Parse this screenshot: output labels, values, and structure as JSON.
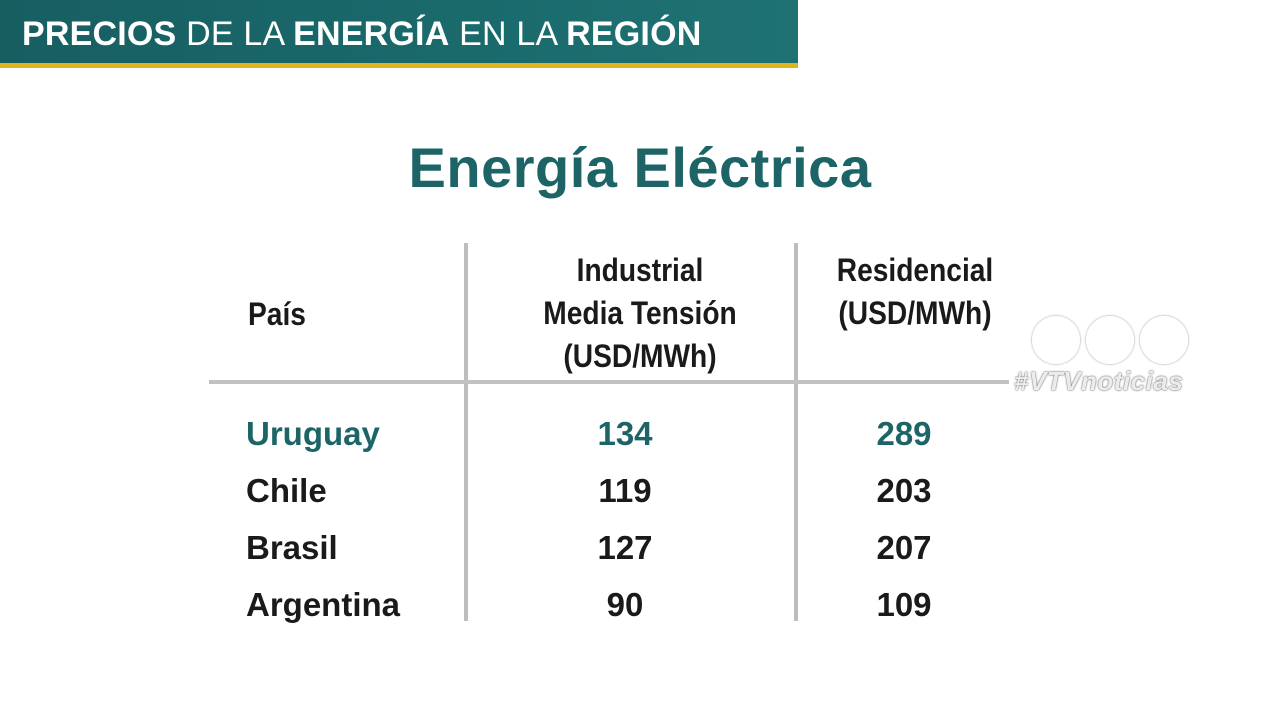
{
  "banner": {
    "words": [
      {
        "text": "PRECIOS",
        "bold": true
      },
      {
        "text": "DE LA",
        "bold": false
      },
      {
        "text": "ENERGÍA",
        "bold": true
      },
      {
        "text": "EN LA",
        "bold": false
      },
      {
        "text": "REGIÓN",
        "bold": true
      }
    ],
    "background": "#1a6668",
    "accent_line": "#e1b21c"
  },
  "title": "Energía Eléctrica",
  "title_color": "#1c6466",
  "table": {
    "headers": {
      "country": "País",
      "industrial": [
        "Industrial",
        "Media Tensión",
        "(USD/MWh)"
      ],
      "residential": [
        "Residencial",
        "(USD/MWh)"
      ]
    },
    "rows": [
      {
        "country": "Uruguay",
        "industrial": "134",
        "residential": "289",
        "highlight": true
      },
      {
        "country": "Chile",
        "industrial": "119",
        "residential": "203",
        "highlight": false
      },
      {
        "country": "Brasil",
        "industrial": "127",
        "residential": "207",
        "highlight": false
      },
      {
        "country": "Argentina",
        "industrial": "90",
        "residential": "109",
        "highlight": false
      }
    ],
    "highlight_color": "#1c6466"
  },
  "watermark": {
    "text": "#VTVnoticias",
    "icon": "three-circles-logo"
  }
}
